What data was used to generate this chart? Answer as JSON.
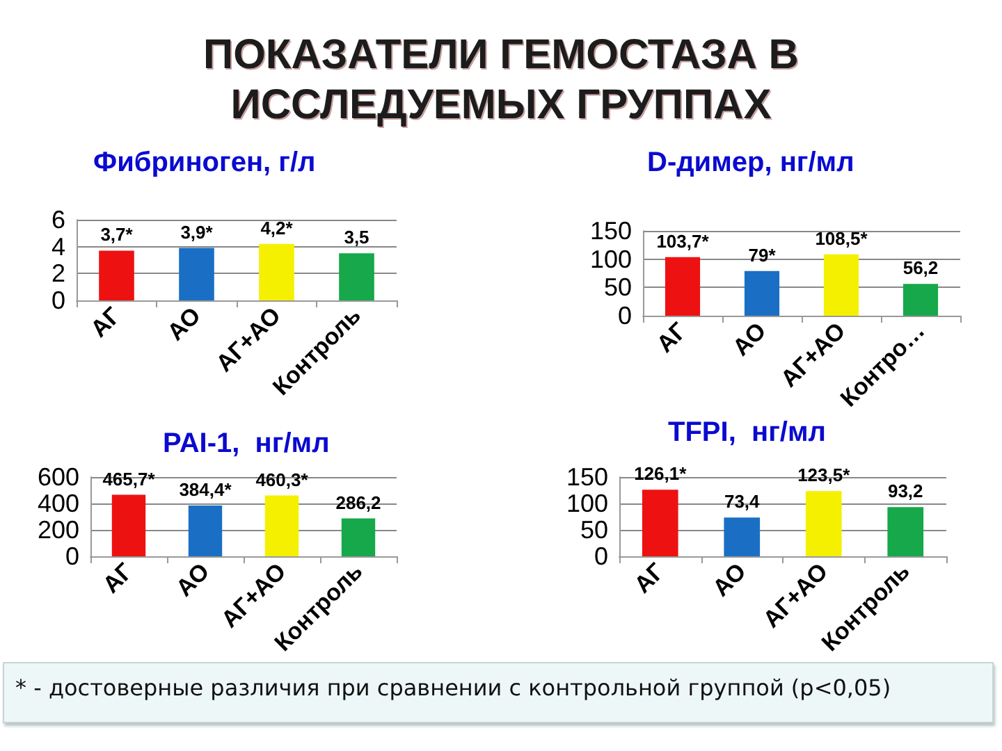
{
  "chart_data": [
    {
      "type": "other",
      "title": "ПОКАЗАТЕЛИ ГЕМОСТАЗА В ИССЛЕДУЕМЫХ ГРУППАХ"
    },
    {
      "type": "bar",
      "title": "Фибриноген, г/л",
      "categories": [
        "АГ",
        "АО",
        "АГ+АО",
        "Контроль"
      ],
      "values": [
        3.7,
        3.9,
        4.2,
        3.5
      ],
      "colors": [
        "#ee1111",
        "#1a6fc4",
        "#f5f000",
        "#16a84a"
      ],
      "value_labels": [
        "3,7*",
        "3,9*",
        "4,2*",
        "3,5"
      ],
      "ylim": [
        0,
        6
      ],
      "yticks": [
        0,
        2,
        4,
        6
      ],
      "grid": "y"
    },
    {
      "type": "bar",
      "title": "D-димер, нг/мл",
      "categories": [
        "АГ",
        "АО",
        "АГ+АО",
        "Контро…"
      ],
      "values": [
        103.7,
        79,
        108.5,
        56.2
      ],
      "colors": [
        "#ee1111",
        "#1a6fc4",
        "#f5f000",
        "#16a84a"
      ],
      "value_labels": [
        "103,7*",
        "79*",
        "108,5*",
        "56,2"
      ],
      "ylim": [
        0,
        150
      ],
      "yticks": [
        0,
        50,
        100,
        150
      ],
      "grid": "y"
    },
    {
      "type": "bar",
      "title": "PAI-1,  нг/мл",
      "categories": [
        "АГ",
        "АО",
        "АГ+АО",
        "Контроль"
      ],
      "values": [
        465.7,
        384.4,
        460.3,
        286.2
      ],
      "colors": [
        "#ee1111",
        "#1a6fc4",
        "#f5f000",
        "#16a84a"
      ],
      "value_labels": [
        "465,7*",
        "384,4*",
        "460,3*",
        "286,2"
      ],
      "ylim": [
        0,
        600
      ],
      "yticks": [
        0,
        200,
        400,
        600
      ],
      "grid": "y"
    },
    {
      "type": "bar",
      "title": "TFPI,  нг/мл",
      "categories": [
        "АГ",
        "АО",
        "АГ+АО",
        "Контроль"
      ],
      "values": [
        126.1,
        73.4,
        123.5,
        93.2
      ],
      "colors": [
        "#ee1111",
        "#1a6fc4",
        "#f5f000",
        "#16a84a"
      ],
      "value_labels": [
        "126,1*",
        "73,4",
        "123,5*",
        "93,2"
      ],
      "ylim": [
        0,
        150
      ],
      "yticks": [
        0,
        50,
        100,
        150
      ],
      "grid": "y"
    },
    {
      "type": "other",
      "annotations": [
        "* - достоверные различия при сравнении с контрольной группой (p<0,05)"
      ]
    }
  ]
}
